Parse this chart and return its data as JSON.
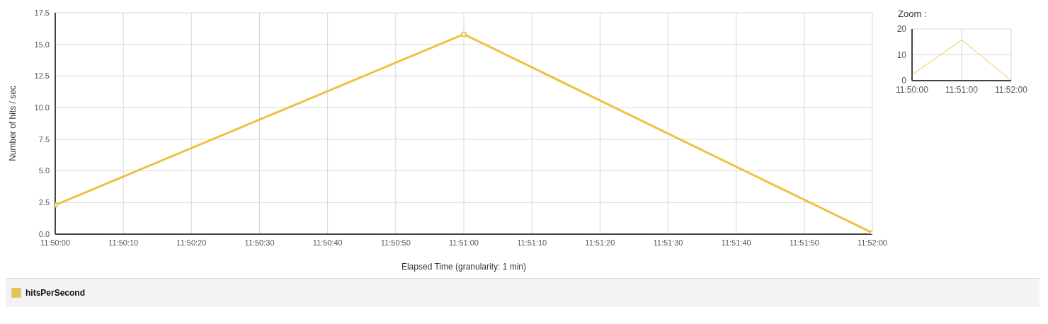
{
  "chart_data": [
    {
      "type": "line",
      "xlabel": "Elapsed Time (granularity: 1 min)",
      "ylabel": "Number of hits / sec",
      "x": [
        11.833333,
        11.85,
        11.866667
      ],
      "series": [
        {
          "name": "hitsPerSecond",
          "color": "#edc240",
          "values": [
            2.3,
            15.8,
            0.1
          ]
        }
      ],
      "xlim": [
        11.833333,
        11.866667
      ],
      "xticks": [
        {
          "value": 11.833333,
          "label": "11:50:00"
        },
        {
          "value": 11.836111,
          "label": "11:50:10"
        },
        {
          "value": 11.838889,
          "label": "11:50:20"
        },
        {
          "value": 11.841667,
          "label": "11:50:30"
        },
        {
          "value": 11.844444,
          "label": "11:50:40"
        },
        {
          "value": 11.847222,
          "label": "11:50:50"
        },
        {
          "value": 11.85,
          "label": "11:51:00"
        },
        {
          "value": 11.852778,
          "label": "11:51:10"
        },
        {
          "value": 11.855556,
          "label": "11:51:20"
        },
        {
          "value": 11.858333,
          "label": "11:51:30"
        },
        {
          "value": 11.861111,
          "label": "11:51:40"
        },
        {
          "value": 11.863889,
          "label": "11:51:50"
        },
        {
          "value": 11.866667,
          "label": "11:52:00"
        }
      ],
      "ylim": [
        0,
        17.5
      ],
      "yticks": [
        {
          "value": 0,
          "label": "0.0"
        },
        2.5,
        {
          "value": 5,
          "label": "5.0"
        },
        7.5,
        {
          "value": 10,
          "label": "10.0"
        },
        12.5,
        {
          "value": 15,
          "label": "15.0"
        },
        17.5
      ],
      "grid": true,
      "marker": "circle",
      "legend": "bottom"
    },
    {
      "type": "line",
      "title": "Zoom :",
      "x": [
        11.833333,
        11.85,
        11.866667
      ],
      "series": [
        {
          "color": "#edc240",
          "values": [
            2.3,
            15.8,
            0.1
          ]
        }
      ],
      "xlim": [
        11.833333,
        11.866667
      ],
      "xticks": [
        {
          "value": 11.833333,
          "label": "11:50:00"
        },
        {
          "value": 11.85,
          "label": "11:51:00"
        },
        {
          "value": 11.866667,
          "label": "11:52:00"
        }
      ],
      "ylim": [
        0,
        20
      ],
      "yticks": [
        0,
        10,
        20
      ],
      "grid": true
    }
  ]
}
